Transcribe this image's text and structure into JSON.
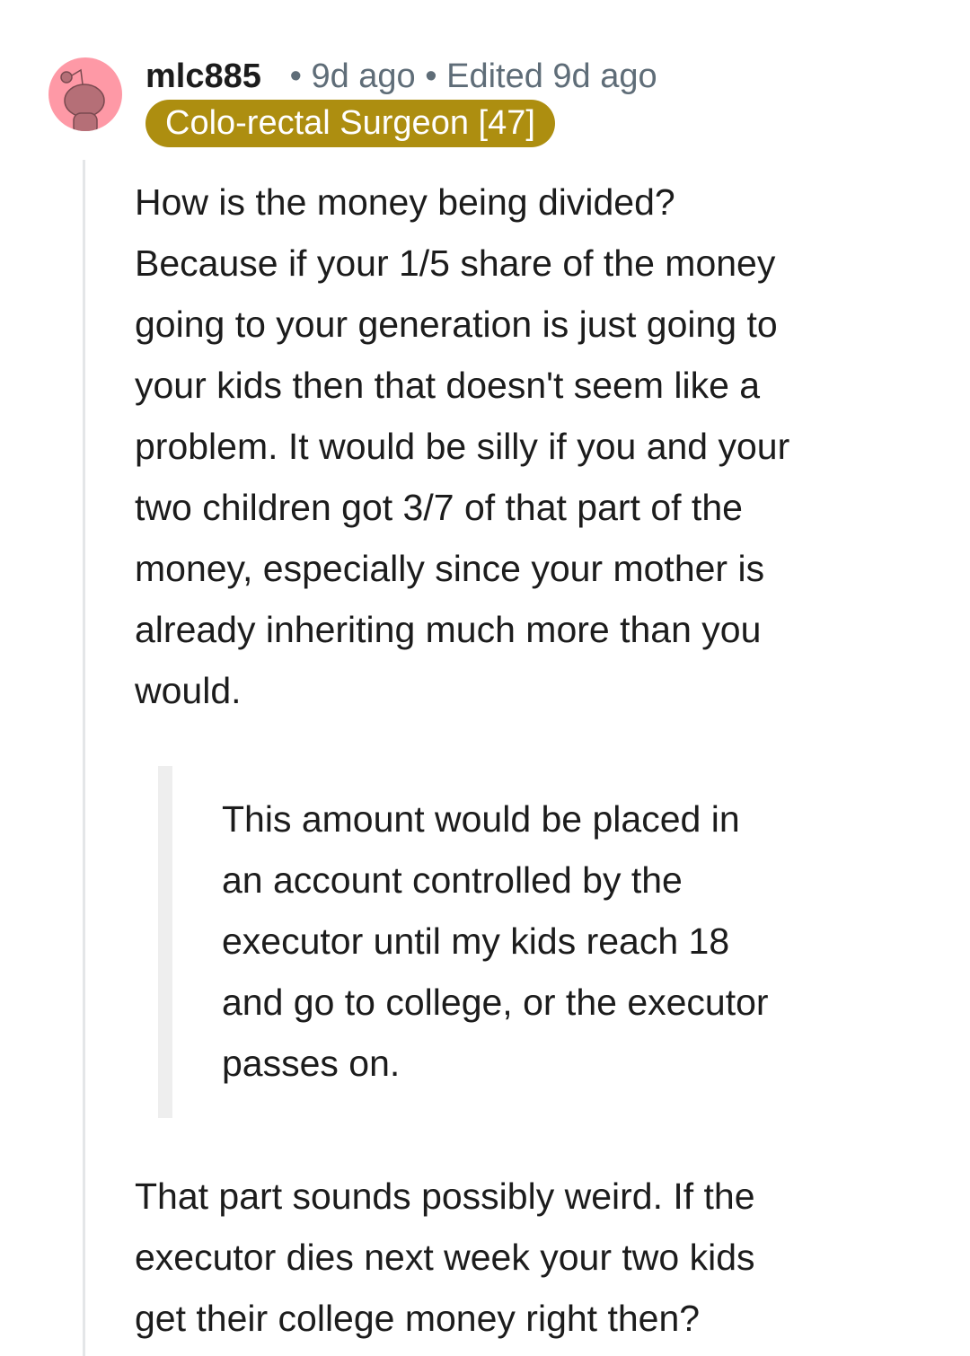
{
  "comment": {
    "author": "mlc885",
    "time": "9d ago",
    "edited": "Edited 9d ago",
    "flair": "Colo-rectal Surgeon [47]",
    "flair_color": "#ad8e10",
    "avatar_color": "#fe99a6",
    "paragraph1": [
      "How is the money being divided?",
      "Because if your 1/5 share of the money",
      "going to your generation is just going to",
      "your kids then that doesn't seem like a",
      "problem. It would be silly if you and your",
      "two children got 3/7 of that part of the",
      "money, especially since your mother is",
      "already inheriting much more than you",
      "would."
    ],
    "quote": [
      "This amount would be placed in",
      "an account controlled by the",
      "executor until my kids reach 18",
      "and go to college, or the executor",
      "passes on."
    ],
    "paragraph2": [
      "That part sounds possibly weird. If the",
      "executor dies next week your two kids",
      "get their college money right then?"
    ]
  }
}
